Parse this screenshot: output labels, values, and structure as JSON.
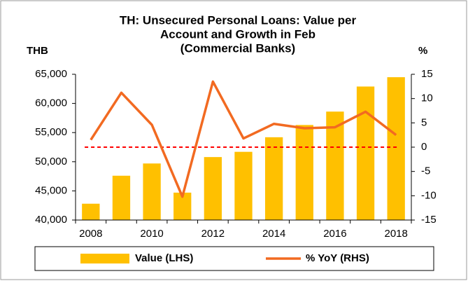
{
  "chart_data": {
    "type": "bar_line",
    "title": [
      "TH: Unsecured Personal Loans: Value per",
      "Account and Growth in Feb",
      "(Commercial Banks)"
    ],
    "y_axis_label": "THB",
    "y2_axis_label": "%",
    "categories": [
      "2008",
      null,
      "2010",
      null,
      "2012",
      null,
      "2014",
      null,
      "2016",
      null,
      "2018"
    ],
    "series": [
      {
        "name": "Value (LHS)",
        "kind": "bar",
        "color": "#ffc000",
        "values": [
          42800,
          47600,
          49700,
          44700,
          50800,
          51700,
          54200,
          56300,
          58600,
          62900,
          64500
        ]
      },
      {
        "name": "% YoY (RHS)",
        "kind": "line",
        "axis": "y2",
        "color": "#f26a21",
        "values": [
          1.5,
          11.2,
          4.6,
          -10.2,
          13.5,
          1.8,
          4.8,
          3.9,
          4.1,
          7.3,
          2.5
        ]
      }
    ],
    "ylim": [
      40000,
      65000
    ],
    "yticks": [
      {
        "value": 40000,
        "label": "40,000"
      },
      {
        "value": 45000,
        "label": "45,000"
      },
      {
        "value": 50000,
        "label": "50,000"
      },
      {
        "value": 55000,
        "label": "55,000"
      },
      {
        "value": 60000,
        "label": "60,000"
      },
      {
        "value": 65000,
        "label": "65,000"
      }
    ],
    "y2lim": [
      -15,
      15
    ],
    "y2ticks": [
      -15,
      -10,
      -5,
      0,
      5,
      10,
      15
    ],
    "reference_line_y2": {
      "value": 0,
      "color": "#ff0000"
    },
    "legend": "bottom"
  }
}
